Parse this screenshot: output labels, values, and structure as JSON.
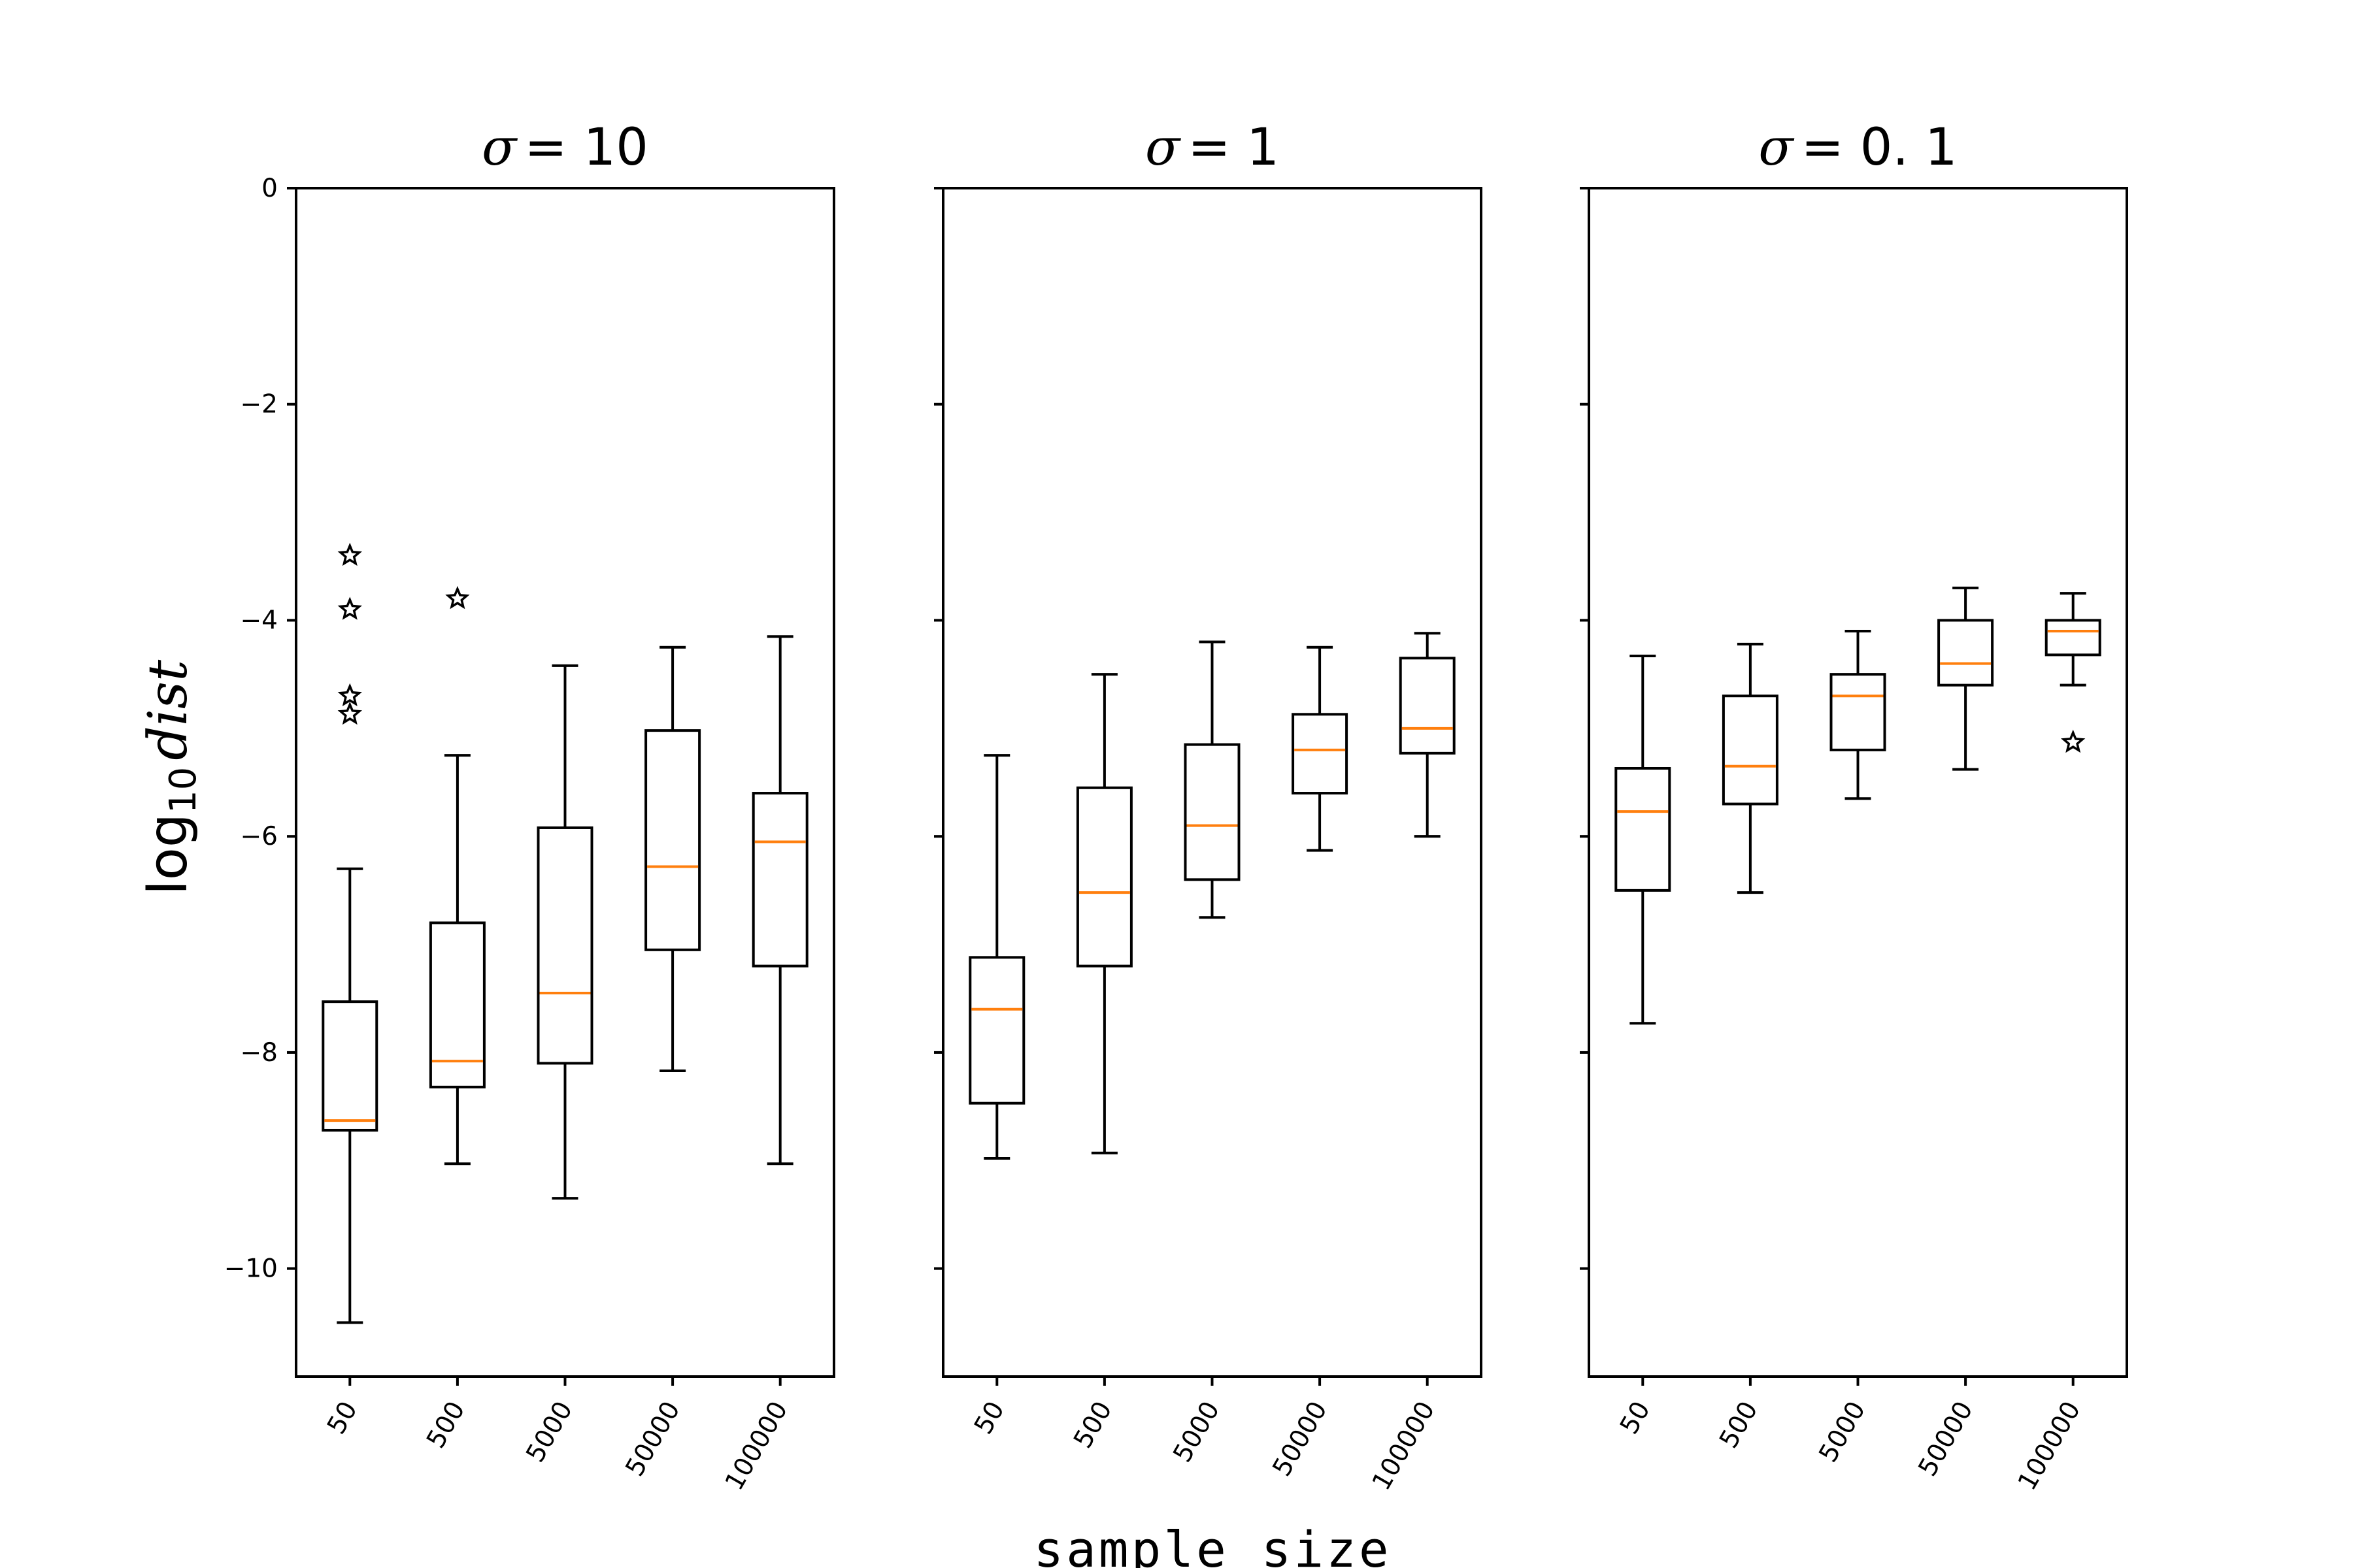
{
  "chart_data": {
    "type": "boxplot",
    "xlabel": "sample size",
    "ylabel": {
      "base": "log",
      "subscript": "10",
      "var": "dist"
    },
    "ylim": [
      -11,
      0
    ],
    "yticks": [
      0,
      -2,
      -4,
      -6,
      -8,
      -10
    ],
    "ytick_labels": [
      "0",
      "−2",
      "−4",
      "−6",
      "−8",
      "−10"
    ],
    "categories": [
      "50",
      "500",
      "5000",
      "50000",
      "100000"
    ],
    "colors": {
      "box": "#000000",
      "median": "#ff7f0e"
    },
    "panels": [
      {
        "title_symbol": "σ",
        "title_rest": "= 10",
        "boxes": [
          {
            "whislo": -10.5,
            "q1": -8.72,
            "med": -8.63,
            "q3": -7.53,
            "whishi": -6.3,
            "fliers": [
              -3.4,
              -3.9,
              -4.7,
              -4.87
            ]
          },
          {
            "whislo": -9.03,
            "q1": -8.32,
            "med": -8.08,
            "q3": -6.8,
            "whishi": -5.25,
            "fliers": [
              -3.8
            ]
          },
          {
            "whislo": -9.35,
            "q1": -8.1,
            "med": -7.45,
            "q3": -5.92,
            "whishi": -4.42,
            "fliers": []
          },
          {
            "whislo": -8.17,
            "q1": -7.05,
            "med": -6.28,
            "q3": -5.02,
            "whishi": -4.25,
            "fliers": []
          },
          {
            "whislo": -9.03,
            "q1": -7.2,
            "med": -6.05,
            "q3": -5.6,
            "whishi": -4.15,
            "fliers": []
          }
        ]
      },
      {
        "title_symbol": "σ",
        "title_rest": "= 1",
        "boxes": [
          {
            "whislo": -8.98,
            "q1": -8.47,
            "med": -7.6,
            "q3": -7.12,
            "whishi": -5.25,
            "fliers": []
          },
          {
            "whislo": -8.93,
            "q1": -7.2,
            "med": -6.52,
            "q3": -5.55,
            "whishi": -4.5,
            "fliers": []
          },
          {
            "whislo": -6.75,
            "q1": -6.4,
            "med": -5.9,
            "q3": -5.15,
            "whishi": -4.2,
            "fliers": []
          },
          {
            "whislo": -6.13,
            "q1": -5.6,
            "med": -5.2,
            "q3": -4.87,
            "whishi": -4.25,
            "fliers": []
          },
          {
            "whislo": -6.0,
            "q1": -5.23,
            "med": -5.0,
            "q3": -4.35,
            "whishi": -4.12,
            "fliers": []
          }
        ]
      },
      {
        "title_symbol": "σ",
        "title_rest": "= 0. 1",
        "boxes": [
          {
            "whislo": -7.73,
            "q1": -6.5,
            "med": -5.77,
            "q3": -5.37,
            "whishi": -4.33,
            "fliers": []
          },
          {
            "whislo": -6.52,
            "q1": -5.7,
            "med": -5.35,
            "q3": -4.7,
            "whishi": -4.22,
            "fliers": []
          },
          {
            "whislo": -5.65,
            "q1": -5.2,
            "med": -4.7,
            "q3": -4.5,
            "whishi": -4.1,
            "fliers": []
          },
          {
            "whislo": -5.38,
            "q1": -4.6,
            "med": -4.4,
            "q3": -4.0,
            "whishi": -3.7,
            "fliers": []
          },
          {
            "whislo": -4.6,
            "q1": -4.32,
            "med": -4.1,
            "q3": -4.0,
            "whishi": -3.75,
            "fliers": [
              -5.13
            ]
          }
        ]
      }
    ]
  }
}
